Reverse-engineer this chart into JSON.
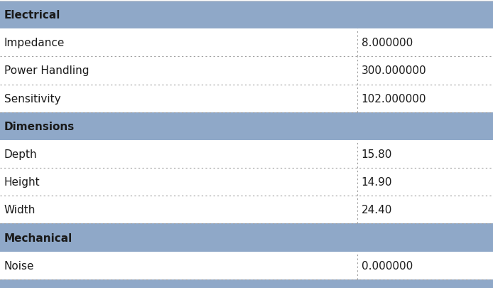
{
  "sections": [
    {
      "header": "Electrical",
      "rows": [
        {
          "name": "Impedance",
          "value": "8.000000"
        },
        {
          "name": "Power Handling",
          "value": "300.000000"
        },
        {
          "name": "Sensitivity",
          "value": "102.000000"
        }
      ]
    },
    {
      "header": "Dimensions",
      "rows": [
        {
          "name": "Depth",
          "value": "15.80"
        },
        {
          "name": "Height",
          "value": "14.90"
        },
        {
          "name": "Width",
          "value": "24.40"
        }
      ]
    },
    {
      "header": "Mechanical",
      "rows": [
        {
          "name": "Noise",
          "value": "0.000000"
        }
      ]
    }
  ],
  "header_bg_color": "#8FA8C8",
  "row_bg_color": "#FFFFFF",
  "header_text_color": "#1a1a1a",
  "row_text_color": "#1a1a1a",
  "divider_color": "#A0A0A0",
  "col_split": 0.725,
  "header_fontsize": 11,
  "row_fontsize": 11,
  "outer_border_color": "#8FA8C8",
  "fig_bg_color": "#FFFFFF",
  "bottom_strip_color": "#8FA8C8",
  "top_strip_color": "#FFFFFF"
}
